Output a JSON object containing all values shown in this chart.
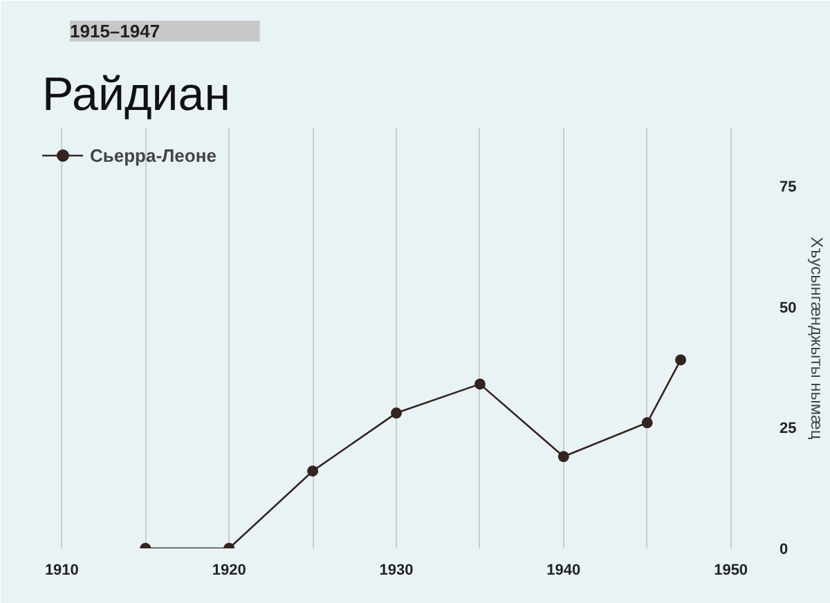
{
  "chart_data": {
    "type": "line",
    "title": "Райдиан",
    "subtitle": "1915–1947",
    "ylabel": "Хъусынгæнджыты нымæц",
    "x": [
      1915,
      1920,
      1925,
      1930,
      1935,
      1940,
      1945,
      1947
    ],
    "series": [
      {
        "name": "Сьерра-Леоне",
        "color": "#33241f",
        "values": [
          0,
          0,
          16,
          28,
          34,
          19,
          26,
          39
        ]
      }
    ],
    "xlim": [
      1908,
      1952
    ],
    "ylim": [
      0,
      87
    ],
    "xticks": [
      1910,
      {
        "value": 1915,
        "label": null
      },
      1920,
      {
        "value": 1925,
        "label": null
      },
      1930,
      {
        "value": 1935,
        "label": null
      },
      1940,
      {
        "value": 1945,
        "label": null
      },
      1950
    ],
    "yticks": [
      0,
      25,
      50,
      75
    ],
    "grid": "x",
    "legend": "top left",
    "marker": "circle",
    "line_style": "solid"
  }
}
